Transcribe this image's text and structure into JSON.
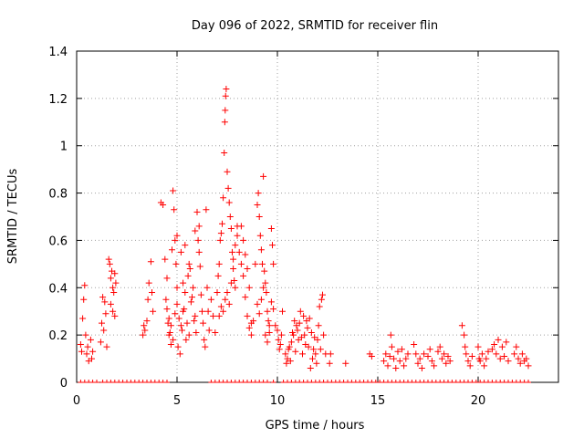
{
  "chart_data": {
    "type": "scatter",
    "title": "Day 096 of 2022, SRMTID for receiver flin",
    "xlabel": "GPS time / hours",
    "ylabel": "SRMTID / TECUs",
    "xlim": [
      0,
      24
    ],
    "ylim": [
      0,
      1.4
    ],
    "x_ticks": [
      0,
      5,
      10,
      15,
      20
    ],
    "x_tick_labels": [
      "0",
      "5",
      "10",
      "15",
      "20"
    ],
    "y_ticks": [
      0,
      0.2,
      0.4,
      0.6,
      0.8,
      1.0,
      1.2,
      1.4
    ],
    "y_tick_labels": [
      "0",
      "0.2",
      "0.4",
      "0.6",
      "0.8",
      "1",
      "1.2",
      "1.4"
    ],
    "grid": true,
    "marker": "+",
    "color": "#ff0000",
    "series": [
      {
        "name": "SRMTID",
        "points": [
          [
            0.2,
            0.16
          ],
          [
            0.25,
            0.13
          ],
          [
            0.3,
            0.27
          ],
          [
            0.35,
            0.35
          ],
          [
            0.4,
            0.41
          ],
          [
            0.45,
            0.2
          ],
          [
            0.5,
            0.12
          ],
          [
            0.55,
            0.15
          ],
          [
            0.6,
            0.09
          ],
          [
            0.7,
            0.18
          ],
          [
            0.8,
            0.13
          ],
          [
            0.75,
            0.1
          ],
          [
            1.2,
            0.17
          ],
          [
            1.25,
            0.25
          ],
          [
            1.3,
            0.36
          ],
          [
            1.35,
            0.22
          ],
          [
            1.4,
            0.34
          ],
          [
            1.45,
            0.29
          ],
          [
            1.5,
            0.15
          ],
          [
            1.6,
            0.52
          ],
          [
            1.65,
            0.5
          ],
          [
            1.7,
            0.44
          ],
          [
            1.75,
            0.47
          ],
          [
            1.8,
            0.4
          ],
          [
            1.85,
            0.38
          ],
          [
            1.9,
            0.46
          ],
          [
            1.95,
            0.42
          ],
          [
            1.7,
            0.33
          ],
          [
            1.8,
            0.3
          ],
          [
            1.9,
            0.28
          ],
          [
            3.3,
            0.2
          ],
          [
            3.35,
            0.24
          ],
          [
            3.4,
            0.22
          ],
          [
            3.5,
            0.26
          ],
          [
            3.6,
            0.42
          ],
          [
            3.7,
            0.51
          ],
          [
            3.75,
            0.38
          ],
          [
            3.8,
            0.3
          ],
          [
            3.55,
            0.35
          ],
          [
            4.2,
            0.76
          ],
          [
            4.3,
            0.75
          ],
          [
            4.4,
            0.52
          ],
          [
            4.45,
            0.35
          ],
          [
            4.5,
            0.31
          ],
          [
            4.55,
            0.25
          ],
          [
            4.6,
            0.27
          ],
          [
            4.65,
            0.21
          ],
          [
            4.7,
            0.24
          ],
          [
            4.75,
            0.56
          ],
          [
            4.8,
            0.81
          ],
          [
            4.85,
            0.73
          ],
          [
            4.9,
            0.6
          ],
          [
            4.95,
            0.5
          ],
          [
            5.0,
            0.4
          ],
          [
            4.5,
            0.44
          ],
          [
            4.6,
            0.2
          ],
          [
            4.7,
            0.16
          ],
          [
            4.8,
            0.18
          ],
          [
            4.9,
            0.29
          ],
          [
            5.0,
            0.33
          ],
          [
            5.1,
            0.27
          ],
          [
            5.2,
            0.24
          ],
          [
            5.3,
            0.3
          ],
          [
            5.4,
            0.38
          ],
          [
            5.5,
            0.25
          ],
          [
            5.6,
            0.2
          ],
          [
            5.7,
            0.34
          ],
          [
            5.8,
            0.4
          ],
          [
            5.9,
            0.28
          ],
          [
            5.05,
            0.15
          ],
          [
            5.15,
            0.12
          ],
          [
            5.25,
            0.22
          ],
          [
            5.35,
            0.31
          ],
          [
            5.45,
            0.18
          ],
          [
            5.55,
            0.45
          ],
          [
            5.65,
            0.48
          ],
          [
            5.75,
            0.36
          ],
          [
            5.85,
            0.26
          ],
          [
            5.95,
            0.21
          ],
          [
            6.0,
            0.72
          ],
          [
            6.05,
            0.6
          ],
          [
            6.1,
            0.55
          ],
          [
            6.15,
            0.49
          ],
          [
            6.2,
            0.37
          ],
          [
            6.25,
            0.3
          ],
          [
            6.3,
            0.25
          ],
          [
            6.35,
            0.18
          ],
          [
            6.4,
            0.15
          ],
          [
            6.45,
            0.73
          ],
          [
            6.5,
            0.4
          ],
          [
            6.55,
            0.3
          ],
          [
            6.6,
            0.22
          ],
          [
            6.7,
            0.35
          ],
          [
            6.8,
            0.28
          ],
          [
            6.9,
            0.21
          ],
          [
            5.0,
            0.62
          ],
          [
            5.2,
            0.55
          ],
          [
            5.4,
            0.58
          ],
          [
            5.6,
            0.5
          ],
          [
            5.3,
            0.42
          ],
          [
            5.9,
            0.64
          ],
          [
            6.1,
            0.66
          ],
          [
            7.0,
            0.38
          ],
          [
            7.05,
            0.45
          ],
          [
            7.1,
            0.5
          ],
          [
            7.15,
            0.6
          ],
          [
            7.2,
            0.63
          ],
          [
            7.25,
            0.67
          ],
          [
            7.3,
            0.78
          ],
          [
            7.35,
            0.97
          ],
          [
            7.38,
            1.1
          ],
          [
            7.4,
            1.15
          ],
          [
            7.42,
            1.21
          ],
          [
            7.45,
            1.24
          ],
          [
            7.5,
            0.89
          ],
          [
            7.55,
            0.82
          ],
          [
            7.6,
            0.76
          ],
          [
            7.65,
            0.7
          ],
          [
            7.7,
            0.65
          ],
          [
            7.75,
            0.55
          ],
          [
            7.8,
            0.48
          ],
          [
            7.85,
            0.43
          ],
          [
            7.9,
            0.4
          ],
          [
            7.1,
            0.28
          ],
          [
            7.2,
            0.32
          ],
          [
            7.3,
            0.3
          ],
          [
            7.4,
            0.35
          ],
          [
            7.5,
            0.38
          ],
          [
            7.6,
            0.33
          ],
          [
            7.7,
            0.42
          ],
          [
            7.8,
            0.52
          ],
          [
            7.9,
            0.58
          ],
          [
            8.0,
            0.62
          ],
          [
            8.1,
            0.55
          ],
          [
            8.2,
            0.5
          ],
          [
            8.3,
            0.45
          ],
          [
            8.4,
            0.36
          ],
          [
            8.5,
            0.28
          ],
          [
            8.6,
            0.23
          ],
          [
            8.7,
            0.2
          ],
          [
            8.8,
            0.26
          ],
          [
            8.0,
            0.66
          ],
          [
            8.2,
            0.66
          ],
          [
            8.3,
            0.6
          ],
          [
            8.4,
            0.54
          ],
          [
            8.5,
            0.48
          ],
          [
            8.6,
            0.4
          ],
          [
            8.7,
            0.25
          ],
          [
            8.9,
            0.5
          ],
          [
            9.0,
            0.75
          ],
          [
            9.05,
            0.8
          ],
          [
            9.1,
            0.7
          ],
          [
            9.15,
            0.62
          ],
          [
            9.2,
            0.56
          ],
          [
            9.25,
            0.5
          ],
          [
            9.3,
            0.87
          ],
          [
            9.35,
            0.47
          ],
          [
            9.4,
            0.42
          ],
          [
            9.45,
            0.38
          ],
          [
            9.5,
            0.3
          ],
          [
            9.55,
            0.26
          ],
          [
            9.6,
            0.24
          ],
          [
            9.7,
            0.65
          ],
          [
            9.75,
            0.58
          ],
          [
            9.8,
            0.5
          ],
          [
            9.0,
            0.33
          ],
          [
            9.1,
            0.29
          ],
          [
            9.2,
            0.35
          ],
          [
            9.3,
            0.4
          ],
          [
            9.4,
            0.2
          ],
          [
            9.5,
            0.17
          ],
          [
            9.6,
            0.21
          ],
          [
            9.7,
            0.34
          ],
          [
            9.8,
            0.31
          ],
          [
            9.9,
            0.24
          ],
          [
            10.0,
            0.22
          ],
          [
            10.05,
            0.18
          ],
          [
            10.1,
            0.14
          ],
          [
            10.15,
            0.16
          ],
          [
            10.2,
            0.2
          ],
          [
            10.25,
            0.3
          ],
          [
            10.4,
            0.12
          ],
          [
            10.5,
            0.1
          ],
          [
            10.6,
            0.15
          ],
          [
            10.7,
            0.17
          ],
          [
            10.8,
            0.2
          ],
          [
            10.9,
            0.13
          ],
          [
            11.0,
            0.22
          ],
          [
            11.1,
            0.25
          ],
          [
            11.2,
            0.19
          ],
          [
            11.3,
            0.28
          ],
          [
            11.4,
            0.16
          ],
          [
            11.5,
            0.23
          ],
          [
            11.6,
            0.27
          ],
          [
            11.7,
            0.21
          ],
          [
            11.8,
            0.14
          ],
          [
            11.9,
            0.12
          ],
          [
            12.0,
            0.18
          ],
          [
            12.1,
            0.32
          ],
          [
            12.2,
            0.35
          ],
          [
            12.25,
            0.37
          ],
          [
            12.3,
            0.2
          ],
          [
            12.4,
            0.12
          ],
          [
            10.45,
            0.08
          ],
          [
            10.55,
            0.14
          ],
          [
            10.65,
            0.09
          ],
          [
            10.75,
            0.21
          ],
          [
            10.85,
            0.26
          ],
          [
            10.95,
            0.24
          ],
          [
            11.05,
            0.18
          ],
          [
            11.15,
            0.3
          ],
          [
            11.25,
            0.12
          ],
          [
            11.35,
            0.2
          ],
          [
            11.45,
            0.26
          ],
          [
            11.55,
            0.15
          ],
          [
            11.65,
            0.06
          ],
          [
            11.75,
            0.1
          ],
          [
            11.85,
            0.19
          ],
          [
            11.95,
            0.08
          ],
          [
            12.05,
            0.24
          ],
          [
            12.15,
            0.14
          ],
          [
            12.6,
            0.08
          ],
          [
            12.65,
            0.12
          ],
          [
            13.4,
            0.08
          ],
          [
            14.6,
            0.12
          ],
          [
            14.7,
            0.11
          ],
          [
            15.3,
            0.09
          ],
          [
            15.4,
            0.12
          ],
          [
            15.5,
            0.07
          ],
          [
            15.6,
            0.11
          ],
          [
            15.65,
            0.2
          ],
          [
            15.7,
            0.15
          ],
          [
            15.8,
            0.1
          ],
          [
            15.9,
            0.06
          ],
          [
            16.0,
            0.13
          ],
          [
            16.1,
            0.09
          ],
          [
            16.2,
            0.14
          ],
          [
            16.3,
            0.07
          ],
          [
            16.4,
            0.1
          ],
          [
            16.5,
            0.12
          ],
          [
            16.8,
            0.16
          ],
          [
            16.9,
            0.12
          ],
          [
            17.0,
            0.08
          ],
          [
            17.1,
            0.1
          ],
          [
            17.2,
            0.06
          ],
          [
            17.3,
            0.12
          ],
          [
            17.5,
            0.11
          ],
          [
            17.6,
            0.14
          ],
          [
            17.7,
            0.09
          ],
          [
            17.8,
            0.07
          ],
          [
            18.0,
            0.13
          ],
          [
            18.1,
            0.15
          ],
          [
            18.2,
            0.1
          ],
          [
            18.3,
            0.12
          ],
          [
            18.4,
            0.08
          ],
          [
            18.5,
            0.11
          ],
          [
            18.6,
            0.09
          ],
          [
            19.2,
            0.24
          ],
          [
            19.3,
            0.2
          ],
          [
            19.35,
            0.15
          ],
          [
            19.4,
            0.12
          ],
          [
            19.5,
            0.09
          ],
          [
            19.6,
            0.07
          ],
          [
            19.7,
            0.11
          ],
          [
            20.0,
            0.15
          ],
          [
            20.05,
            0.1
          ],
          [
            20.1,
            0.09
          ],
          [
            20.2,
            0.12
          ],
          [
            20.3,
            0.07
          ],
          [
            20.4,
            0.1
          ],
          [
            20.5,
            0.13
          ],
          [
            20.7,
            0.14
          ],
          [
            20.8,
            0.16
          ],
          [
            20.9,
            0.12
          ],
          [
            21.0,
            0.18
          ],
          [
            21.1,
            0.1
          ],
          [
            21.2,
            0.15
          ],
          [
            21.3,
            0.11
          ],
          [
            21.4,
            0.17
          ],
          [
            21.5,
            0.09
          ],
          [
            21.8,
            0.12
          ],
          [
            21.9,
            0.15
          ],
          [
            22.0,
            0.1
          ],
          [
            22.1,
            0.08
          ],
          [
            22.2,
            0.12
          ],
          [
            22.3,
            0.09
          ],
          [
            22.4,
            0.1
          ],
          [
            22.5,
            0.07
          ]
        ]
      }
    ],
    "zero_points_x": [
      0.2,
      0.4,
      0.6,
      0.8,
      1.0,
      1.3,
      1.5,
      1.7,
      1.9,
      2.1,
      2.3,
      2.5,
      2.7,
      2.9,
      3.1,
      3.3,
      3.5,
      3.7,
      3.9,
      4.1,
      4.3,
      4.5,
      6.7,
      6.9,
      7.1,
      7.3,
      7.5,
      7.7,
      7.9,
      8.1,
      8.3,
      8.5,
      8.7,
      8.9,
      9.1,
      9.3,
      9.5,
      9.8,
      10.3,
      10.5,
      10.7,
      10.9,
      11.1,
      11.3,
      11.5,
      11.7,
      11.9,
      12.1,
      12.3,
      12.5,
      12.7,
      12.9,
      13.1,
      13.3,
      13.5,
      13.7,
      13.9,
      14.1,
      14.3,
      14.5,
      14.7,
      14.9,
      15.1,
      15.3,
      15.5,
      15.7,
      15.9,
      16.1,
      16.3,
      16.5,
      16.7,
      16.9,
      17.1,
      17.3,
      17.5,
      17.7,
      17.9,
      18.1,
      18.3,
      18.5,
      18.7,
      18.9,
      19.1,
      19.3,
      19.5,
      19.7,
      19.9,
      20.1,
      20.3,
      20.5,
      20.7,
      20.9,
      21.1,
      21.3,
      21.5,
      21.7,
      21.9,
      22.1,
      22.3,
      22.5
    ]
  }
}
